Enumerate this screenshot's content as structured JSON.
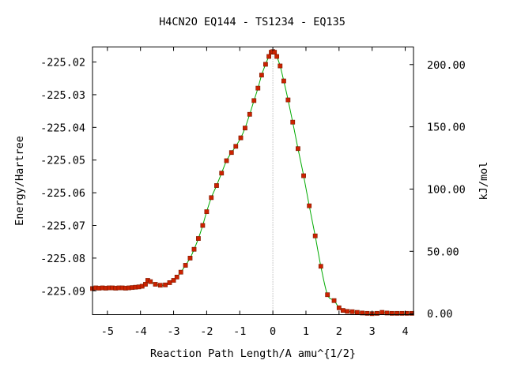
{
  "chart_data": {
    "type": "line",
    "title": "H4CN2O   EQ144 - TS1234 - EQ135",
    "xlabel": "Reaction Path Length/A amu^{1/2}",
    "ylabel": "Energy/Hartree",
    "y2label": "kJ/mol",
    "xlim": [
      -5.45,
      4.25
    ],
    "ylim": [
      -225.0973,
      -225.0154
    ],
    "y2lim": [
      -0.87,
      214.13
    ],
    "x_ticks": [
      "-5",
      "-4",
      "-3",
      "-2",
      "-1",
      "0",
      "1",
      "2",
      "3",
      "4"
    ],
    "x_tick_values": [
      -5,
      -4,
      -3,
      -2,
      -1,
      0,
      1,
      2,
      3,
      4
    ],
    "y_ticks": [
      "-225.02",
      "-225.03",
      "-225.04",
      "-225.05",
      "-225.06",
      "-225.07",
      "-225.08",
      "-225.09"
    ],
    "y_tick_values": [
      -225.02,
      -225.03,
      -225.04,
      -225.05,
      -225.06,
      -225.07,
      -225.08,
      -225.09
    ],
    "y2_ticks": [
      "200.00",
      "150.00",
      "100.00",
      "50.00",
      "0.00"
    ],
    "y2_tick_values": [
      200,
      150,
      100,
      50,
      0
    ],
    "ts_x": 0,
    "line_color": "#00aa00",
    "marker_color": "#cc2200",
    "marker_edge": "#7a1a00",
    "vline_color": "#999999",
    "series": [
      {
        "x": [
          -5.45,
          -5.35,
          -5.25,
          -5.15,
          -5.05,
          -4.95,
          -4.85,
          -4.75,
          -4.65,
          -4.55,
          -4.45,
          -4.35,
          -4.25,
          -4.15,
          -4.05,
          -3.95,
          -3.85,
          -3.78,
          -3.7,
          -3.55,
          -3.4,
          -3.25,
          -3.12,
          -3.0,
          -2.9,
          -2.78,
          -2.64,
          -2.5,
          -2.38,
          -2.25,
          -2.12,
          -2.0,
          -1.86,
          -1.7,
          -1.55,
          -1.4,
          -1.25,
          -1.12,
          -0.97,
          -0.84,
          -0.7,
          -0.57,
          -0.45,
          -0.34,
          -0.22,
          -0.12,
          -0.05,
          0.0,
          0.05,
          0.12,
          0.22,
          0.33,
          0.46,
          0.6,
          0.76,
          0.93,
          1.1,
          1.28,
          1.45,
          1.65,
          1.85,
          2.0,
          2.12,
          2.25,
          2.4,
          2.55,
          2.7,
          2.85,
          3.0,
          3.15,
          3.3,
          3.45,
          3.6,
          3.75,
          3.9,
          4.05,
          4.2
        ],
        "y": [
          -225.0893,
          -225.0891,
          -225.0892,
          -225.0891,
          -225.0892,
          -225.0891,
          -225.0891,
          -225.0892,
          -225.0891,
          -225.0891,
          -225.0892,
          -225.0891,
          -225.089,
          -225.0889,
          -225.0888,
          -225.0886,
          -225.088,
          -225.0868,
          -225.0872,
          -225.088,
          -225.0883,
          -225.0882,
          -225.0875,
          -225.0868,
          -225.0858,
          -225.0843,
          -225.0822,
          -225.08,
          -225.0773,
          -225.074,
          -225.07,
          -225.0658,
          -225.0615,
          -225.0578,
          -225.054,
          -225.0502,
          -225.0477,
          -225.0458,
          -225.0432,
          -225.0402,
          -225.036,
          -225.0318,
          -225.028,
          -225.024,
          -225.0207,
          -225.0183,
          -225.017,
          -225.0168,
          -225.017,
          -225.0183,
          -225.0212,
          -225.0258,
          -225.0316,
          -225.0384,
          -225.0465,
          -225.0548,
          -225.064,
          -225.0732,
          -225.0825,
          -225.0912,
          -225.093,
          -225.0952,
          -225.096,
          -225.0963,
          -225.0964,
          -225.0966,
          -225.0968,
          -225.0969,
          -225.097,
          -225.0969,
          -225.0966,
          -225.0968,
          -225.0969,
          -225.0969,
          -225.0969,
          -225.0969,
          -225.0969
        ]
      }
    ]
  }
}
